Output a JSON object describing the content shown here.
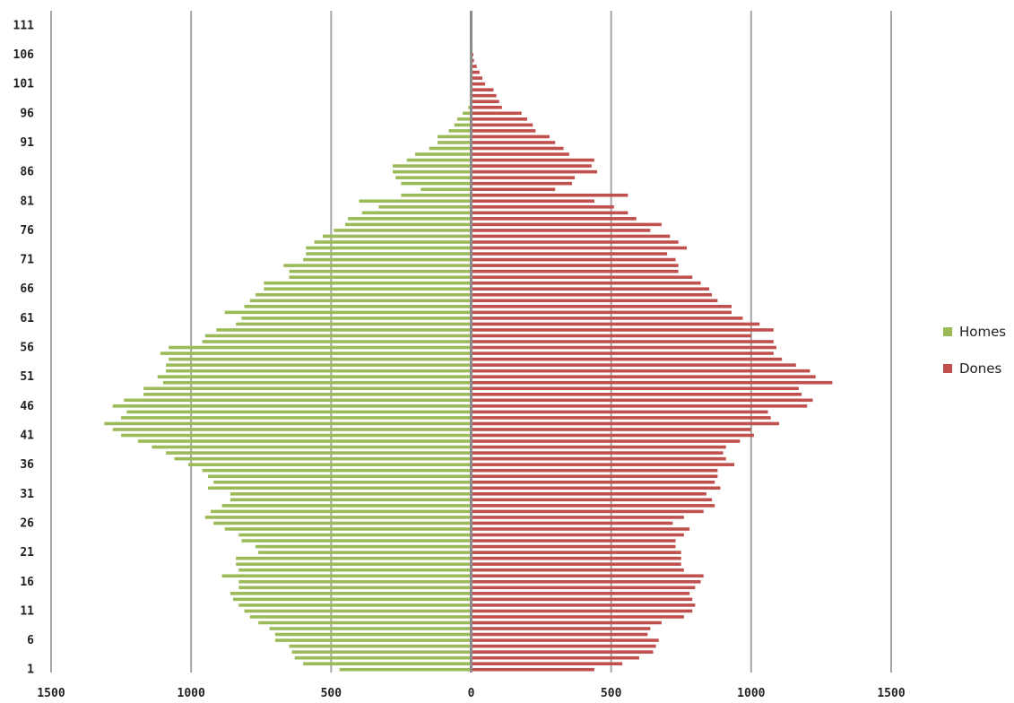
{
  "chart_data": {
    "type": "bar",
    "orientation": "horizontal",
    "layout": "population-pyramid",
    "x_axis_ticks": [
      "1500",
      "1000",
      "500",
      "0",
      "500",
      "1000",
      "1500"
    ],
    "y_axis_ticks": [
      "1",
      "6",
      "11",
      "16",
      "21",
      "26",
      "31",
      "36",
      "41",
      "46",
      "51",
      "56",
      "61",
      "66",
      "71",
      "76",
      "81",
      "86",
      "91",
      "96",
      "101",
      "106",
      "111"
    ],
    "xlim": [
      -1500,
      1500
    ],
    "grid": true,
    "legend_position": "right",
    "categories": [
      "1",
      "2",
      "3",
      "4",
      "5",
      "6",
      "7",
      "8",
      "9",
      "10",
      "11",
      "12",
      "13",
      "14",
      "15",
      "16",
      "17",
      "18",
      "19",
      "20",
      "21",
      "22",
      "23",
      "24",
      "25",
      "26",
      "27",
      "28",
      "29",
      "30",
      "31",
      "32",
      "33",
      "34",
      "35",
      "36",
      "37",
      "38",
      "39",
      "40",
      "41",
      "42",
      "43",
      "44",
      "45",
      "46",
      "47",
      "48",
      "49",
      "50",
      "51",
      "52",
      "53",
      "54",
      "55",
      "56",
      "57",
      "58",
      "59",
      "60",
      "61",
      "62",
      "63",
      "64",
      "65",
      "66",
      "67",
      "68",
      "69",
      "70",
      "71",
      "72",
      "73",
      "74",
      "75",
      "76",
      "77",
      "78",
      "79",
      "80",
      "81",
      "82",
      "83",
      "84",
      "85",
      "86",
      "87",
      "88",
      "89",
      "90",
      "91",
      "92",
      "93",
      "94",
      "95",
      "96",
      "97",
      "98",
      "99",
      "100",
      "101",
      "102",
      "103",
      "104",
      "105",
      "106",
      "107",
      "108",
      "109",
      "110",
      "111",
      "112",
      "113"
    ],
    "series": [
      {
        "name": "Homes",
        "color": "#9bbb59",
        "side": "left",
        "values": [
          470,
          600,
          630,
          640,
          650,
          700,
          700,
          720,
          760,
          790,
          810,
          830,
          850,
          860,
          830,
          830,
          890,
          830,
          840,
          840,
          760,
          770,
          820,
          830,
          880,
          920,
          950,
          930,
          890,
          860,
          860,
          940,
          920,
          940,
          960,
          1010,
          1060,
          1090,
          1140,
          1190,
          1250,
          1280,
          1310,
          1250,
          1230,
          1280,
          1240,
          1170,
          1170,
          1100,
          1120,
          1090,
          1090,
          1080,
          1110,
          1080,
          960,
          950,
          910,
          840,
          820,
          880,
          810,
          790,
          770,
          740,
          740,
          650,
          650,
          670,
          600,
          590,
          590,
          560,
          530,
          490,
          450,
          440,
          390,
          330,
          400,
          250,
          180,
          250,
          270,
          280,
          280,
          230,
          200,
          150,
          120,
          120,
          80,
          60,
          50,
          30,
          10,
          5,
          5,
          5,
          3,
          3,
          3,
          2,
          2,
          2,
          2,
          2,
          2,
          2,
          2,
          2,
          2
        ]
      },
      {
        "name": "Dones",
        "color": "#c0504d",
        "side": "right",
        "values": [
          440,
          540,
          600,
          650,
          660,
          670,
          630,
          640,
          680,
          760,
          790,
          800,
          790,
          780,
          800,
          820,
          830,
          760,
          750,
          750,
          750,
          730,
          730,
          760,
          780,
          720,
          760,
          830,
          870,
          860,
          840,
          890,
          870,
          880,
          880,
          940,
          910,
          900,
          910,
          960,
          1010,
          1000,
          1100,
          1070,
          1060,
          1200,
          1220,
          1180,
          1170,
          1290,
          1230,
          1210,
          1160,
          1110,
          1080,
          1090,
          1080,
          1000,
          1080,
          1030,
          970,
          930,
          930,
          880,
          860,
          850,
          820,
          790,
          740,
          740,
          730,
          700,
          770,
          740,
          710,
          640,
          680,
          590,
          560,
          510,
          440,
          560,
          300,
          360,
          370,
          450,
          430,
          440,
          350,
          330,
          300,
          280,
          230,
          220,
          200,
          180,
          110,
          100,
          90,
          80,
          50,
          40,
          30,
          20,
          10,
          8,
          5,
          3,
          3,
          2,
          2,
          2,
          2
        ]
      }
    ]
  }
}
